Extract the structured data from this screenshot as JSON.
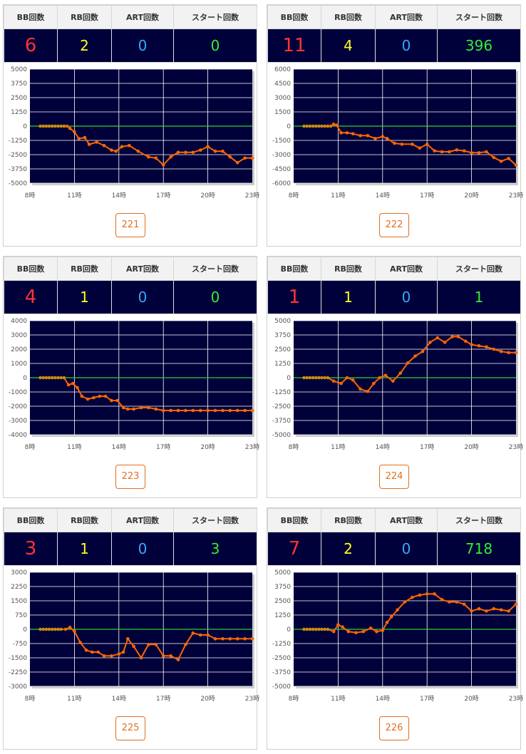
{
  "headers": {
    "bb": "BB回数",
    "rb": "RB回数",
    "art": "ART回数",
    "start": "スタート回数"
  },
  "colors": {
    "bb": "#ff3333",
    "rb": "#ffff22",
    "art": "#33aaff",
    "start": "#33ee33",
    "line": "#ff6600",
    "zero_line": "#33cc33",
    "plot_bg": "#00003a"
  },
  "panels": [
    {
      "machine": "221",
      "bb": "6",
      "rb": "2",
      "art": "0",
      "start": "0",
      "chart_data": {
        "type": "line",
        "yticks": [
          "5000",
          "3750",
          "2500",
          "1250",
          "0",
          "-1250",
          "-2500",
          "-3750",
          "-5000"
        ],
        "ylim": [
          -5000,
          5000
        ],
        "xticks": [
          "8時",
          "11時",
          "14時",
          "17時",
          "20時",
          "23時"
        ],
        "xlim": [
          8,
          23
        ],
        "x": [
          8.7,
          8.9,
          9.1,
          9.3,
          9.5,
          9.7,
          9.9,
          10.1,
          10.3,
          10.5,
          10.7,
          11,
          11.3,
          11.7,
          12,
          12.5,
          13,
          13.5,
          13.8,
          14.2,
          14.7,
          15.3,
          16,
          16.5,
          17,
          17.5,
          18,
          18.5,
          19,
          19.5,
          20,
          20.5,
          21,
          21.5,
          22,
          22.5,
          23
        ],
        "y": [
          0,
          0,
          0,
          0,
          0,
          0,
          0,
          0,
          0,
          0,
          -200,
          -500,
          -1100,
          -1000,
          -1600,
          -1400,
          -1700,
          -2100,
          -2200,
          -1800,
          -1700,
          -2200,
          -2700,
          -2800,
          -3400,
          -2700,
          -2300,
          -2300,
          -2300,
          -2100,
          -1800,
          -2200,
          -2200,
          -2700,
          -3200,
          -2800,
          -2800
        ]
      }
    },
    {
      "machine": "222",
      "bb": "11",
      "rb": "4",
      "art": "0",
      "start": "396",
      "chart_data": {
        "type": "line",
        "yticks": [
          "6000",
          "4500",
          "3000",
          "1500",
          "0",
          "-1500",
          "-3000",
          "-4500",
          "-6000"
        ],
        "ylim": [
          -6000,
          6000
        ],
        "xticks": [
          "8時",
          "11時",
          "14時",
          "17時",
          "20時",
          "23時"
        ],
        "xlim": [
          8,
          23
        ],
        "x": [
          8.7,
          8.9,
          9.1,
          9.3,
          9.5,
          9.7,
          9.9,
          10.1,
          10.3,
          10.5,
          10.7,
          10.9,
          11.2,
          11.6,
          12,
          12.5,
          13,
          13.5,
          14,
          14.3,
          14.8,
          15.3,
          16,
          16.5,
          17,
          17.5,
          18,
          18.5,
          19,
          19.5,
          20,
          20.5,
          21,
          21.5,
          22,
          22.5,
          23
        ],
        "y": [
          0,
          0,
          0,
          0,
          0,
          0,
          0,
          0,
          0,
          0,
          200,
          100,
          -700,
          -700,
          -800,
          -1000,
          -1000,
          -1300,
          -1100,
          -1300,
          -1800,
          -1900,
          -1900,
          -2300,
          -1900,
          -2600,
          -2700,
          -2700,
          -2500,
          -2600,
          -2800,
          -2800,
          -2700,
          -3300,
          -3700,
          -3400,
          -4100
        ]
      }
    },
    {
      "machine": "223",
      "bb": "4",
      "rb": "1",
      "art": "0",
      "start": "0",
      "chart_data": {
        "type": "line",
        "yticks": [
          "4000",
          "3000",
          "2000",
          "1000",
          "0",
          "-1000",
          "-2000",
          "-3000",
          "-4000"
        ],
        "ylim": [
          -4000,
          4000
        ],
        "xticks": [
          "8時",
          "11時",
          "14時",
          "17時",
          "20時",
          "23時"
        ],
        "xlim": [
          8,
          23
        ],
        "x": [
          8.7,
          8.9,
          9.1,
          9.3,
          9.5,
          9.7,
          9.9,
          10.1,
          10.3,
          10.6,
          10.9,
          11.2,
          11.5,
          11.9,
          12.3,
          12.7,
          13.1,
          13.5,
          13.9,
          14.3,
          14.6,
          15,
          15.5,
          16,
          16.5,
          17,
          17.5,
          18,
          18.5,
          19,
          19.5,
          20,
          20.5,
          21,
          21.5,
          22,
          22.5,
          23
        ],
        "y": [
          0,
          0,
          0,
          0,
          0,
          0,
          0,
          0,
          0,
          -500,
          -400,
          -700,
          -1300,
          -1500,
          -1400,
          -1300,
          -1300,
          -1600,
          -1600,
          -2100,
          -2200,
          -2200,
          -2100,
          -2100,
          -2200,
          -2300,
          -2300,
          -2300,
          -2300,
          -2300,
          -2300,
          -2300,
          -2300,
          -2300,
          -2300,
          -2300,
          -2300,
          -2300
        ]
      }
    },
    {
      "machine": "224",
      "bb": "1",
      "rb": "1",
      "art": "0",
      "start": "1",
      "chart_data": {
        "type": "line",
        "yticks": [
          "5000",
          "3750",
          "2500",
          "1250",
          "0",
          "-1250",
          "-2500",
          "-3750",
          "-5000"
        ],
        "ylim": [
          -5000,
          5000
        ],
        "xticks": [
          "8時",
          "11時",
          "14時",
          "17時",
          "20時",
          "23時"
        ],
        "xlim": [
          8,
          23
        ],
        "x": [
          8.7,
          8.9,
          9.1,
          9.3,
          9.5,
          9.7,
          9.9,
          10.1,
          10.3,
          10.7,
          11.2,
          11.6,
          12,
          12.5,
          13,
          13.4,
          13.8,
          14.2,
          14.7,
          15.2,
          15.7,
          16.2,
          16.7,
          17.2,
          17.7,
          18.2,
          18.7,
          19.1,
          19.6,
          20,
          20.5,
          21,
          21.5,
          22,
          22.5,
          23
        ],
        "y": [
          0,
          0,
          0,
          0,
          0,
          0,
          0,
          0,
          0,
          -300,
          -500,
          0,
          -200,
          -1000,
          -1200,
          -500,
          0,
          200,
          -300,
          400,
          1300,
          1900,
          2300,
          3100,
          3500,
          3100,
          3600,
          3600,
          3200,
          2900,
          2800,
          2700,
          2500,
          2300,
          2200,
          2200
        ]
      }
    },
    {
      "machine": "225",
      "bb": "3",
      "rb": "1",
      "art": "0",
      "start": "3",
      "chart_data": {
        "type": "line",
        "yticks": [
          "3000",
          "2250",
          "1500",
          "750",
          "0",
          "-750",
          "-1500",
          "-2250",
          "-3000"
        ],
        "ylim": [
          -3000,
          3000
        ],
        "xticks": [
          "8時",
          "11時",
          "14時",
          "17時",
          "20時",
          "23時"
        ],
        "xlim": [
          8,
          23
        ],
        "x": [
          8.7,
          8.9,
          9.1,
          9.3,
          9.5,
          9.7,
          9.9,
          10.1,
          10.4,
          10.7,
          11,
          11.4,
          11.8,
          12.2,
          12.6,
          13,
          13.5,
          14,
          14.3,
          14.6,
          15,
          15.5,
          16,
          16.5,
          17,
          17.5,
          18,
          18.5,
          19,
          19.5,
          20,
          20.5,
          21,
          21.5,
          22,
          22.5,
          23
        ],
        "y": [
          0,
          0,
          0,
          0,
          0,
          0,
          0,
          0,
          0,
          100,
          -100,
          -700,
          -1100,
          -1200,
          -1200,
          -1400,
          -1400,
          -1300,
          -1200,
          -500,
          -900,
          -1500,
          -800,
          -800,
          -1400,
          -1400,
          -1600,
          -800,
          -200,
          -300,
          -300,
          -500,
          -500,
          -500,
          -500,
          -500,
          -500
        ]
      }
    },
    {
      "machine": "226",
      "bb": "7",
      "rb": "2",
      "art": "0",
      "start": "718",
      "chart_data": {
        "type": "line",
        "yticks": [
          "5000",
          "3750",
          "2500",
          "1250",
          "0",
          "-1250",
          "-2500",
          "-3750",
          "-5000"
        ],
        "ylim": [
          -5000,
          5000
        ],
        "xticks": [
          "8時",
          "11時",
          "14時",
          "17時",
          "20時",
          "23時"
        ],
        "xlim": [
          8,
          23
        ],
        "x": [
          8.7,
          8.9,
          9.1,
          9.3,
          9.5,
          9.7,
          9.9,
          10.1,
          10.3,
          10.7,
          11,
          11.3,
          11.7,
          12.2,
          12.7,
          13.2,
          13.6,
          14,
          14.3,
          14.6,
          15,
          15.5,
          16,
          16.5,
          17,
          17.5,
          18,
          18.5,
          19,
          19.5,
          20,
          20.5,
          21,
          21.5,
          22,
          22.5,
          23
        ],
        "y": [
          0,
          0,
          0,
          0,
          0,
          0,
          0,
          0,
          0,
          -200,
          400,
          200,
          -200,
          -300,
          -200,
          100,
          -200,
          -100,
          600,
          1100,
          1700,
          2400,
          2800,
          3000,
          3100,
          3100,
          2600,
          2400,
          2400,
          2200,
          1600,
          1800,
          1600,
          1800,
          1700,
          1600,
          2200
        ]
      }
    }
  ]
}
